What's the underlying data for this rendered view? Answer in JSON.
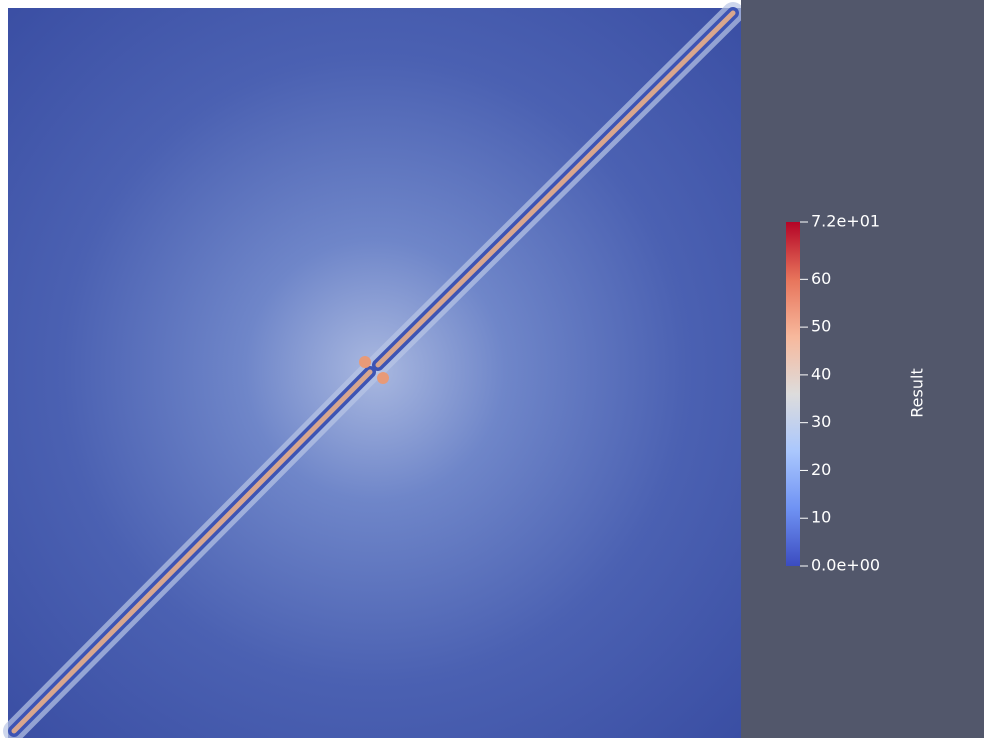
{
  "chart_data": {
    "type": "colorbar",
    "colorbar_label": "Result",
    "clim": [
      0,
      72
    ],
    "cticks": [
      {
        "value": 0,
        "label": "0.0e+00"
      },
      10,
      20,
      30,
      40,
      50,
      60,
      {
        "value": 72,
        "label": "7.2e+01"
      }
    ],
    "colormap": [
      "#3b4cc0",
      "#6f92f3",
      "#aac7fd",
      "#dddcdc",
      "#f7b89c",
      "#e7745b",
      "#b40426"
    ]
  }
}
